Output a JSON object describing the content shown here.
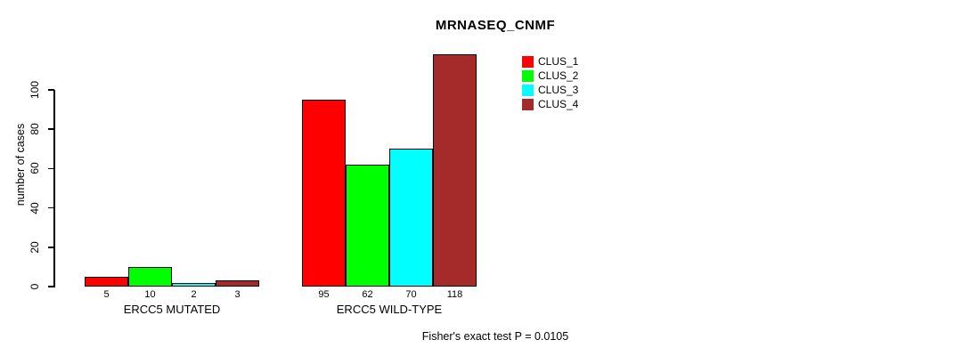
{
  "chart_data": {
    "type": "bar",
    "title": "MRNASEQ_CNMF",
    "ylabel": "number of cases",
    "xlabel": "",
    "ylim": [
      0,
      120
    ],
    "yticks": [
      0,
      20,
      40,
      60,
      80,
      100
    ],
    "grid": false,
    "legend_position": "top-right",
    "bar_labels_shown": true,
    "categories": [
      "ERCC5 MUTATED",
      "ERCC5 WILD-TYPE"
    ],
    "series": [
      {
        "name": "CLUS_1",
        "color": "#ff0000",
        "values": [
          5,
          95
        ]
      },
      {
        "name": "CLUS_2",
        "color": "#00ff00",
        "values": [
          10,
          62
        ]
      },
      {
        "name": "CLUS_3",
        "color": "#00ffff",
        "values": [
          2,
          70
        ]
      },
      {
        "name": "CLUS_4",
        "color": "#a52a2a",
        "values": [
          3,
          118
        ]
      }
    ],
    "annotation": "Fisher's exact test P = 0.0105"
  },
  "colors": {
    "background": "#ffffff",
    "axis": "#000000",
    "text": "#000000"
  }
}
